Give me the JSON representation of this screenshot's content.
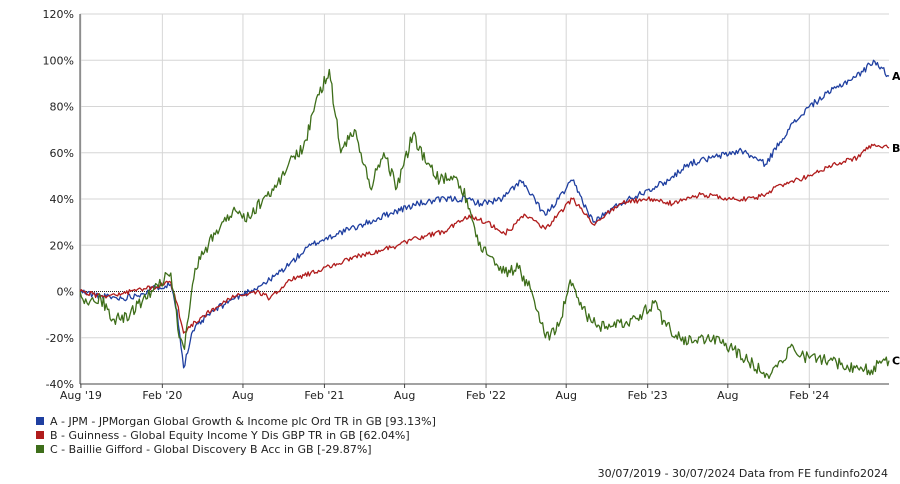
{
  "chart_data": {
    "type": "line",
    "xlabel": "",
    "ylabel": "",
    "ylim": [
      -40,
      120
    ],
    "yticks": [
      "120%",
      "100%",
      "80%",
      "60%",
      "40%",
      "20%",
      "0%",
      "-20%",
      "-40%"
    ],
    "xticks": [
      "Aug '19",
      "Feb '20",
      "Aug",
      "Feb '21",
      "Aug",
      "Feb '22",
      "Aug",
      "Feb '23",
      "Aug",
      "Feb '24"
    ],
    "x_start": "2019-07-30",
    "x_end": "2024-07-30",
    "grid": true,
    "zero_line": true,
    "series": [
      {
        "name": "A - JPM - JPMorgan Global Growth & Income plc Ord TR in GB [93.13%]",
        "end_label": "A",
        "color": "#1f3fa0",
        "points": [
          [
            "2019-07-30",
            0
          ],
          [
            "2019-09-15",
            -2
          ],
          [
            "2019-11-01",
            -3
          ],
          [
            "2019-12-15",
            -1
          ],
          [
            "2020-01-20",
            2
          ],
          [
            "2020-02-20",
            3
          ],
          [
            "2020-03-05",
            -8
          ],
          [
            "2020-03-20",
            -33
          ],
          [
            "2020-04-10",
            -17
          ],
          [
            "2020-05-15",
            -10
          ],
          [
            "2020-07-01",
            -4
          ],
          [
            "2020-08-15",
            0
          ],
          [
            "2020-10-01",
            5
          ],
          [
            "2020-11-15",
            12
          ],
          [
            "2021-01-01",
            20
          ],
          [
            "2021-03-01",
            25
          ],
          [
            "2021-05-01",
            29
          ],
          [
            "2021-07-01",
            34
          ],
          [
            "2021-09-01",
            38
          ],
          [
            "2021-11-01",
            40
          ],
          [
            "2021-12-20",
            40
          ],
          [
            "2022-01-20",
            38
          ],
          [
            "2022-03-10",
            40
          ],
          [
            "2022-04-20",
            48
          ],
          [
            "2022-06-15",
            33
          ],
          [
            "2022-07-15",
            40
          ],
          [
            "2022-08-15",
            48
          ],
          [
            "2022-10-01",
            30
          ],
          [
            "2022-12-01",
            38
          ],
          [
            "2023-02-01",
            44
          ],
          [
            "2023-03-20",
            48
          ],
          [
            "2023-05-01",
            55
          ],
          [
            "2023-07-01",
            58
          ],
          [
            "2023-09-01",
            61
          ],
          [
            "2023-10-25",
            55
          ],
          [
            "2023-12-15",
            70
          ],
          [
            "2024-02-01",
            80
          ],
          [
            "2024-04-01",
            88
          ],
          [
            "2024-06-01",
            95
          ],
          [
            "2024-06-25",
            100
          ],
          [
            "2024-07-30",
            93.13
          ]
        ]
      },
      {
        "name": "B - Guinness - Global Equity Income Y Dis GBP TR in GB [62.04%]",
        "end_label": "B",
        "color": "#b01c1c",
        "points": [
          [
            "2019-07-30",
            0
          ],
          [
            "2019-09-15",
            -2
          ],
          [
            "2019-11-01",
            -1
          ],
          [
            "2019-12-15",
            1
          ],
          [
            "2020-01-20",
            2
          ],
          [
            "2020-02-20",
            4
          ],
          [
            "2020-03-05",
            -5
          ],
          [
            "2020-03-20",
            -18
          ],
          [
            "2020-04-15",
            -13
          ],
          [
            "2020-06-01",
            -7
          ],
          [
            "2020-07-15",
            -2
          ],
          [
            "2020-09-01",
            0
          ],
          [
            "2020-10-01",
            -3
          ],
          [
            "2020-11-15",
            5
          ],
          [
            "2021-01-01",
            8
          ],
          [
            "2021-03-01",
            12
          ],
          [
            "2021-05-01",
            16
          ],
          [
            "2021-07-01",
            19
          ],
          [
            "2021-09-15",
            24
          ],
          [
            "2021-11-01",
            26
          ],
          [
            "2021-12-25",
            33
          ],
          [
            "2022-02-01",
            30
          ],
          [
            "2022-03-15",
            25
          ],
          [
            "2022-05-01",
            33
          ],
          [
            "2022-06-15",
            27
          ],
          [
            "2022-08-15",
            40
          ],
          [
            "2022-10-01",
            29
          ],
          [
            "2022-12-01",
            38
          ],
          [
            "2023-02-01",
            40
          ],
          [
            "2023-04-01",
            38
          ],
          [
            "2023-06-01",
            42
          ],
          [
            "2023-08-01",
            40
          ],
          [
            "2023-10-01",
            40
          ],
          [
            "2023-12-01",
            46
          ],
          [
            "2024-02-01",
            50
          ],
          [
            "2024-04-01",
            55
          ],
          [
            "2024-05-20",
            58
          ],
          [
            "2024-06-15",
            63
          ],
          [
            "2024-07-30",
            62.04
          ]
        ]
      },
      {
        "name": "C - Baillie Gifford - Global Discovery B Acc in GB [-29.87%]",
        "end_label": "C",
        "color": "#3e6e1a",
        "points": [
          [
            "2019-07-30",
            0
          ],
          [
            "2019-08-15",
            -5
          ],
          [
            "2019-09-15",
            -3
          ],
          [
            "2019-10-15",
            -12
          ],
          [
            "2019-11-20",
            -10
          ],
          [
            "2019-12-20",
            -3
          ],
          [
            "2020-01-20",
            3
          ],
          [
            "2020-02-20",
            8
          ],
          [
            "2020-03-10",
            -20
          ],
          [
            "2020-03-22",
            -25
          ],
          [
            "2020-04-15",
            10
          ],
          [
            "2020-05-15",
            20
          ],
          [
            "2020-06-15",
            30
          ],
          [
            "2020-07-15",
            35
          ],
          [
            "2020-08-15",
            32
          ],
          [
            "2020-09-15",
            40
          ],
          [
            "2020-10-15",
            45
          ],
          [
            "2020-11-15",
            57
          ],
          [
            "2020-12-15",
            62
          ],
          [
            "2021-01-20",
            85
          ],
          [
            "2021-02-12",
            96
          ],
          [
            "2021-03-10",
            60
          ],
          [
            "2021-04-10",
            70
          ],
          [
            "2021-05-15",
            45
          ],
          [
            "2021-06-15",
            60
          ],
          [
            "2021-07-15",
            45
          ],
          [
            "2021-08-20",
            68
          ],
          [
            "2021-09-20",
            55
          ],
          [
            "2021-10-20",
            48
          ],
          [
            "2021-11-20",
            50
          ],
          [
            "2021-12-20",
            40
          ],
          [
            "2022-01-15",
            20
          ],
          [
            "2022-02-15",
            15
          ],
          [
            "2022-03-15",
            8
          ],
          [
            "2022-04-15",
            10
          ],
          [
            "2022-05-15",
            0
          ],
          [
            "2022-06-15",
            -20
          ],
          [
            "2022-07-15",
            -15
          ],
          [
            "2022-08-10",
            5
          ],
          [
            "2022-09-15",
            -10
          ],
          [
            "2022-10-15",
            -15
          ],
          [
            "2022-11-15",
            -15
          ],
          [
            "2022-12-15",
            -13
          ],
          [
            "2023-01-15",
            -10
          ],
          [
            "2023-02-15",
            -5
          ],
          [
            "2023-03-15",
            -15
          ],
          [
            "2023-04-15",
            -20
          ],
          [
            "2023-05-15",
            -22
          ],
          [
            "2023-06-15",
            -20
          ],
          [
            "2023-07-15",
            -22
          ],
          [
            "2023-08-15",
            -25
          ],
          [
            "2023-09-15",
            -30
          ],
          [
            "2023-10-30",
            -36
          ],
          [
            "2023-11-30",
            -30
          ],
          [
            "2023-12-20",
            -24
          ],
          [
            "2024-01-20",
            -28
          ],
          [
            "2024-03-15",
            -30
          ],
          [
            "2024-05-15",
            -33
          ],
          [
            "2024-06-20",
            -34
          ],
          [
            "2024-07-15",
            -30
          ],
          [
            "2024-07-30",
            -29.87
          ]
        ]
      }
    ]
  },
  "legend": [
    {
      "label": "A - JPM - JPMorgan Global Growth & Income plc Ord TR in GB [93.13%]",
      "color": "#1f3fa0"
    },
    {
      "label": "B - Guinness - Global Equity Income Y Dis GBP TR in GB [62.04%]",
      "color": "#b01c1c"
    },
    {
      "label": "C - Baillie Gifford - Global Discovery B Acc in GB [-29.87%]",
      "color": "#3e6e1a"
    }
  ],
  "footer": "30/07/2019 - 30/07/2024 Data from FE fundinfo2024"
}
